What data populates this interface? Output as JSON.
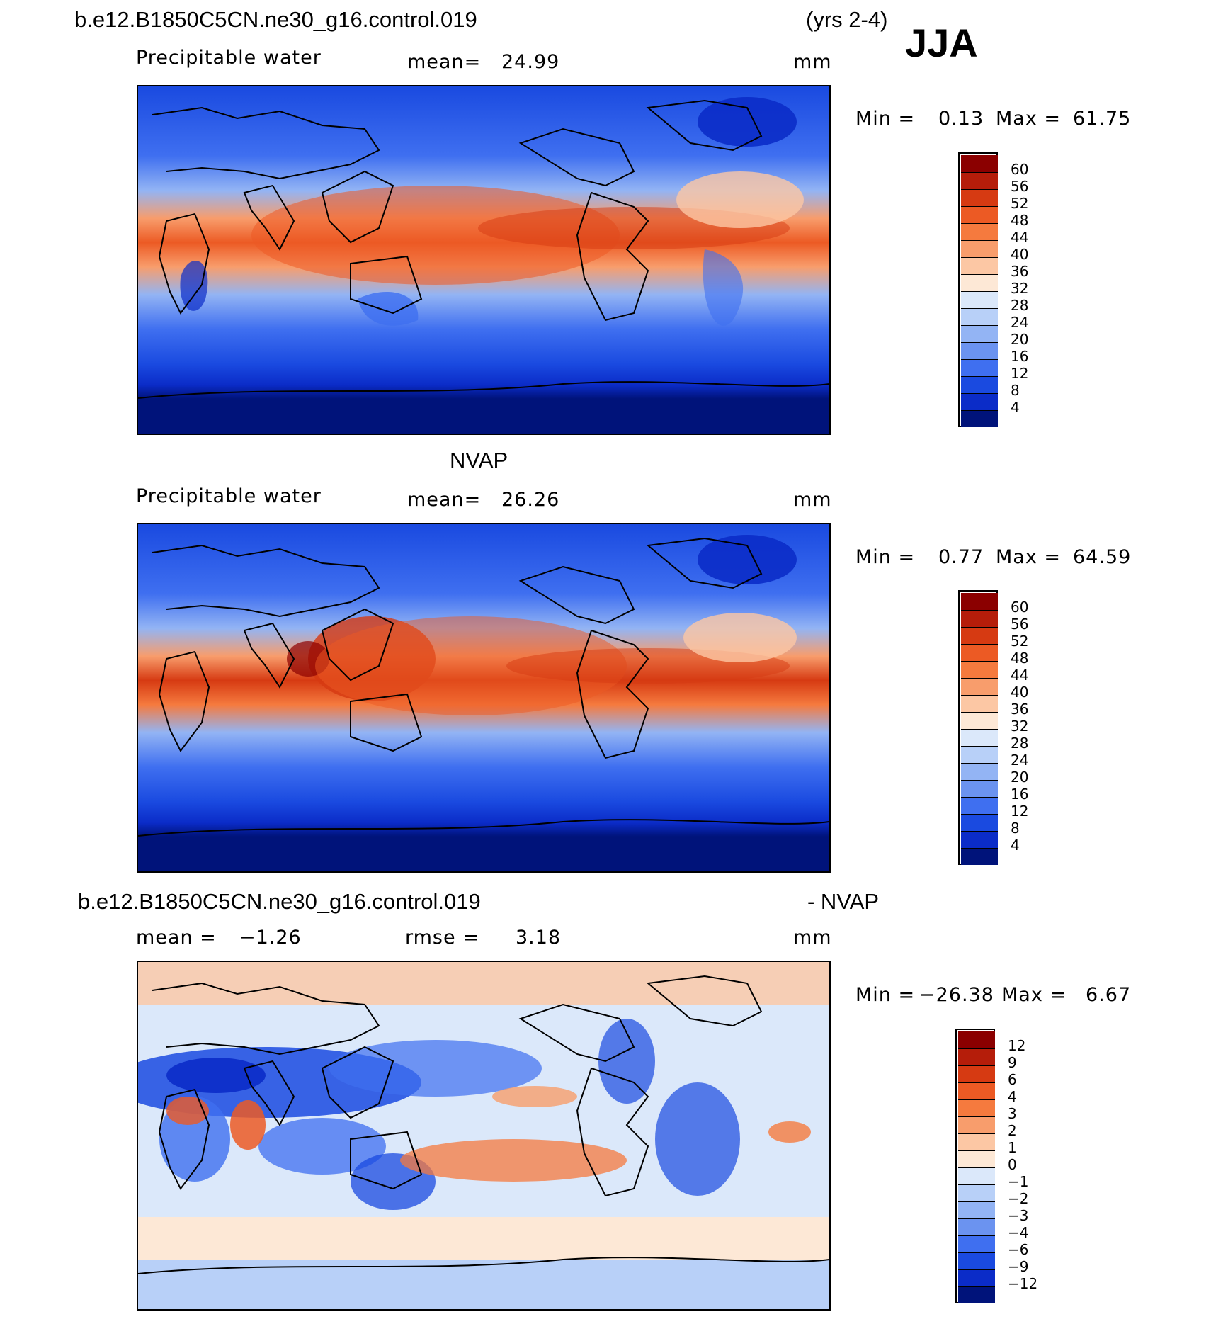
{
  "season": "JJA",
  "panel1": {
    "case": "b.e12.B1850C5CN.ne30_g16.control.019",
    "years": "(yrs 2-4)",
    "variable": "Precipitable water",
    "mean_label": "mean=",
    "mean_value": "24.99",
    "units": "mm",
    "min_label": "Min =",
    "min_value": "0.13",
    "max_label": "Max =",
    "max_value": "61.75",
    "levels": [
      "60",
      "56",
      "52",
      "48",
      "44",
      "40",
      "36",
      "32",
      "28",
      "24",
      "20",
      "16",
      "12",
      "8",
      "4"
    ]
  },
  "panel2": {
    "title": "NVAP",
    "variable": "Precipitable water",
    "mean_label": "mean=",
    "mean_value": "26.26",
    "units": "mm",
    "min_label": "Min =",
    "min_value": "0.77",
    "max_label": "Max =",
    "max_value": "64.59",
    "levels": [
      "60",
      "56",
      "52",
      "48",
      "44",
      "40",
      "36",
      "32",
      "28",
      "24",
      "20",
      "16",
      "12",
      "8",
      "4"
    ]
  },
  "panel3": {
    "case": "b.e12.B1850C5CN.ne30_g16.control.019",
    "minus": "- NVAP",
    "mean_label": "mean =",
    "mean_value": "−1.26",
    "rmse_label": "rmse =",
    "rmse_value": "3.18",
    "units": "mm",
    "min_label": "Min =",
    "min_value": "−26.38",
    "max_label": "Max =",
    "max_value": "6.67",
    "levels": [
      "12",
      "9",
      "6",
      "4",
      "3",
      "2",
      "1",
      "0",
      "−1",
      "−2",
      "−3",
      "−4",
      "−6",
      "−9",
      "−12"
    ]
  },
  "colors": {
    "scale": [
      "#8b0000",
      "#b51d0a",
      "#d63a12",
      "#ec5a24",
      "#f57a3e",
      "#f89d6c",
      "#fcc7a4",
      "#fde8d6",
      "#dbe8fa",
      "#b8d0f8",
      "#93b4f4",
      "#6b93f0",
      "#3f6ff0",
      "#1a4ae0",
      "#0b2cc8",
      "#00137a"
    ]
  }
}
